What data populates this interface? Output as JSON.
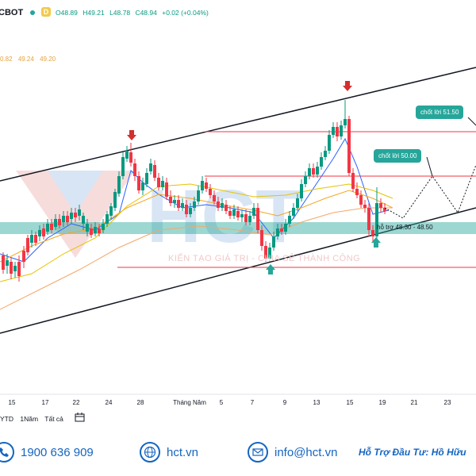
{
  "header": {
    "symbol": "CBOT",
    "ohlc": {
      "o": "O48.89",
      "h": "H49.21",
      "l": "L48.78",
      "c": "C48.94",
      "chg": "+0.02 (+0.04%)"
    },
    "ma_values": [
      "0.82",
      "49.24",
      "49.20"
    ]
  },
  "chart_data": {
    "type": "candlestick",
    "x_labels": [
      "15",
      "17",
      "22",
      "24",
      "28",
      "Tháng Năm",
      "5",
      "7",
      "9",
      "13",
      "15",
      "19",
      "21",
      "23"
    ],
    "support_zone": [
      48.3,
      48.5
    ],
    "annotations": {
      "target_1": "chốt lời 51.50",
      "target_2": "chốt lời 50.00",
      "support_label": "hỗ trợ 48.30 - 48.50",
      "watermark": "KIẾN TẠO GIÁ TRỊ - CHIA SẺ THÀNH CÔNG"
    },
    "colors": {
      "up": "#089981",
      "down": "#f23645",
      "zone": "#26a69a",
      "channel": "#131722"
    }
  },
  "toolbar": {
    "ranges": [
      "YTD",
      "1Năm",
      "Tất cả"
    ]
  },
  "footer": {
    "phone": "1900 636 909",
    "web": "hct.vn",
    "email": "info@hct.vn",
    "support": "Hỗ Trợ Đầu Tư: Hồ Hữu"
  }
}
